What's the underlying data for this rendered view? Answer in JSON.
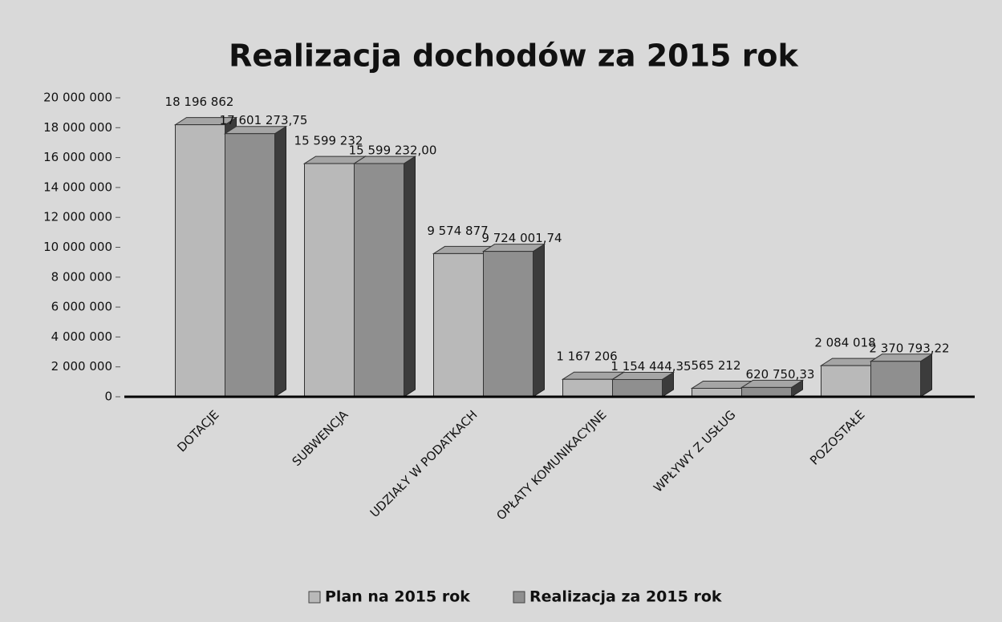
{
  "chart_data": {
    "type": "bar3d",
    "title": "Realizacja dochodów za 2015 rok",
    "categories": [
      "DOTACJE",
      "SUBWENCJA",
      "UDZIAŁY W PODATKACH",
      "OPŁATY KOMUNIKACYJNE",
      "WPŁYWY Z USŁUG",
      "POZOSTAŁE"
    ],
    "series": [
      {
        "name": "Plan na 2015 rok",
        "color": "#b9b9b9",
        "values": [
          18196862,
          15599232,
          9574877,
          1167206,
          565212,
          2084018
        ],
        "value_labels": [
          "18 196 862",
          "15 599 232",
          "9 574 877",
          "1 167 206",
          "565 212",
          "2 084 018"
        ]
      },
      {
        "name": "Realizacja za  2015 rok",
        "color": "#8f8f8f",
        "values": [
          17601273.75,
          15599232,
          9724001.74,
          1154444.35,
          620750.33,
          2370793.22
        ],
        "value_labels": [
          "17 601 273,75",
          "15 599 232,00",
          "9 724 001,74",
          "1 154 444,35",
          "620 750,33",
          "2 370 793,22"
        ]
      }
    ],
    "ylim": [
      0,
      20000000
    ],
    "yticks": [
      0,
      {
        "value": 2000000,
        "label": "2 000 000"
      },
      {
        "value": 4000000,
        "label": "4 000 000"
      },
      {
        "value": 6000000,
        "label": "6 000 000"
      },
      {
        "value": 8000000,
        "label": "8 000 000"
      },
      {
        "value": 10000000,
        "label": "10 000 000"
      },
      {
        "value": 12000000,
        "label": "12 000 000"
      },
      {
        "value": 14000000,
        "label": "14 000 000"
      },
      {
        "value": 16000000,
        "label": "16 000 000"
      },
      {
        "value": 18000000,
        "label": "18 000 000"
      },
      {
        "value": 20000000,
        "label": "20 000 000"
      }
    ],
    "legend": "bottom"
  }
}
